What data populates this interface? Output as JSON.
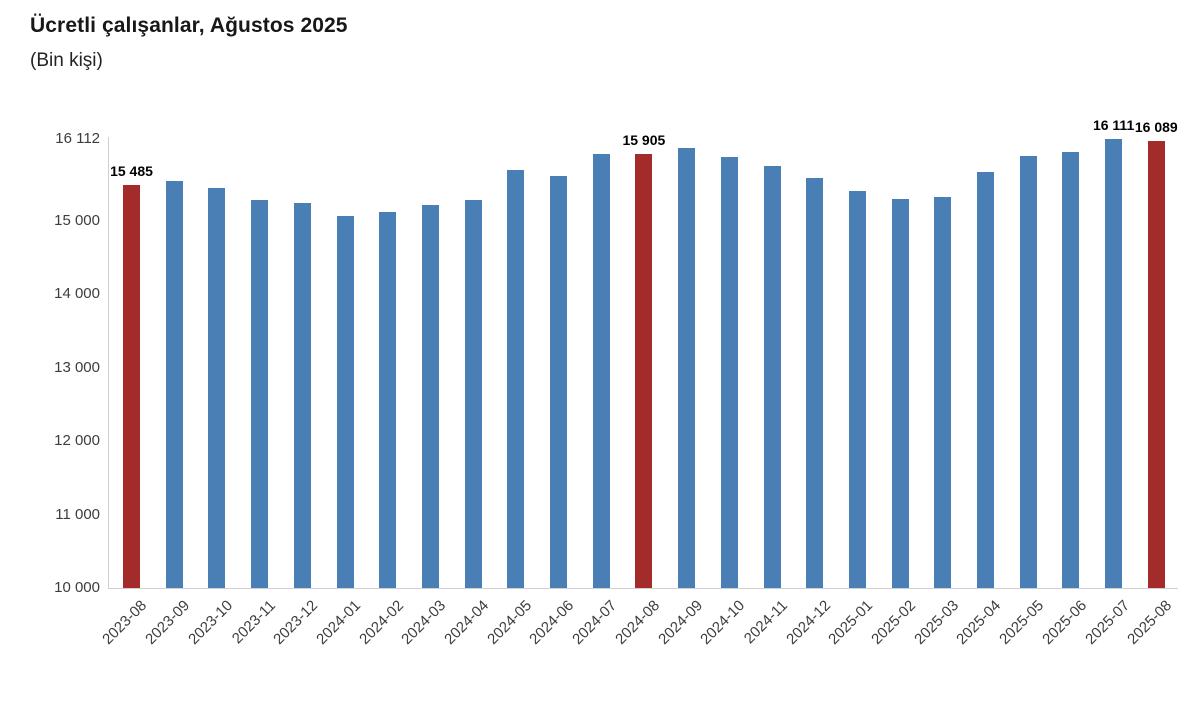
{
  "header": {
    "title": "Ücretli çalışanlar, Ağustos 2025",
    "subtitle": "(Bin kişi)"
  },
  "chart_data": {
    "type": "bar",
    "title": "Ücretli çalışanlar, Ağustos 2025",
    "unit_label": "(Bin kişi)",
    "xlabel": "",
    "ylabel": "",
    "ylim": [
      10000,
      16112
    ],
    "grid": false,
    "legend": "none",
    "colors": {
      "bar_default": "#4a7fb5",
      "bar_highlight": "#a32b2a",
      "axis_line": "#cfcfcf",
      "tick_text": "#3c3d40",
      "data_label_text": "#000000"
    },
    "yticks": [
      {
        "value": 10000,
        "label": "10 000"
      },
      {
        "value": 11000,
        "label": "11 000"
      },
      {
        "value": 12000,
        "label": "12 000"
      },
      {
        "value": 13000,
        "label": "13 000"
      },
      {
        "value": 14000,
        "label": "14 000"
      },
      {
        "value": 15000,
        "label": "15 000"
      },
      {
        "value": 16112,
        "label": "16 112"
      }
    ],
    "points": [
      {
        "category": "2023-08",
        "value": 15485,
        "highlight": true,
        "data_label": "15 485"
      },
      {
        "category": "2023-09",
        "value": 15545,
        "highlight": false
      },
      {
        "category": "2023-10",
        "value": 15440,
        "highlight": false
      },
      {
        "category": "2023-11",
        "value": 15285,
        "highlight": false
      },
      {
        "category": "2023-12",
        "value": 15240,
        "highlight": false
      },
      {
        "category": "2024-01",
        "value": 15060,
        "highlight": false
      },
      {
        "category": "2024-02",
        "value": 15115,
        "highlight": false
      },
      {
        "category": "2024-03",
        "value": 15215,
        "highlight": false
      },
      {
        "category": "2024-04",
        "value": 15280,
        "highlight": false
      },
      {
        "category": "2024-05",
        "value": 15695,
        "highlight": false
      },
      {
        "category": "2024-06",
        "value": 15615,
        "highlight": false
      },
      {
        "category": "2024-07",
        "value": 15910,
        "highlight": false
      },
      {
        "category": "2024-08",
        "value": 15905,
        "highlight": true,
        "data_label": "15 905"
      },
      {
        "category": "2024-09",
        "value": 15990,
        "highlight": false
      },
      {
        "category": "2024-10",
        "value": 15870,
        "highlight": false
      },
      {
        "category": "2024-11",
        "value": 15740,
        "highlight": false
      },
      {
        "category": "2024-12",
        "value": 15575,
        "highlight": false
      },
      {
        "category": "2025-01",
        "value": 15400,
        "highlight": false
      },
      {
        "category": "2025-02",
        "value": 15290,
        "highlight": false
      },
      {
        "category": "2025-03",
        "value": 15320,
        "highlight": false
      },
      {
        "category": "2025-04",
        "value": 15660,
        "highlight": false
      },
      {
        "category": "2025-05",
        "value": 15880,
        "highlight": false
      },
      {
        "category": "2025-06",
        "value": 15935,
        "highlight": false
      },
      {
        "category": "2025-07",
        "value": 16111,
        "highlight": false,
        "data_label": "16 111"
      },
      {
        "category": "2025-08",
        "value": 16089,
        "highlight": true,
        "data_label": "16 089"
      }
    ]
  }
}
